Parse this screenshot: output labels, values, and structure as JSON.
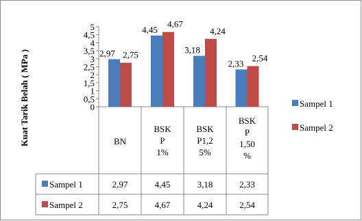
{
  "chart_data": {
    "type": "bar",
    "title": "",
    "xlabel": "",
    "ylabel": "Kuat Tarik Belah ( MPa )",
    "ylim": [
      0,
      5
    ],
    "yticks": [
      "0",
      "0,5",
      "1",
      "1,5",
      "2",
      "2,5",
      "3",
      "3,5",
      "4",
      "4,5",
      "5"
    ],
    "categories": [
      [
        "BN"
      ],
      [
        "BSK",
        "P",
        "1%"
      ],
      [
        "BSK",
        "P1,2",
        "5%"
      ],
      [
        "BSK",
        "P",
        "1,50",
        "%"
      ]
    ],
    "series": [
      {
        "name": "Sampel 1",
        "color": "#4a7ebb",
        "values": [
          2.97,
          4.45,
          3.18,
          2.33
        ],
        "labels": [
          "2,97",
          "4,45",
          "3,18",
          "2,33"
        ]
      },
      {
        "name": "Sampel 2",
        "color": "#be4b48",
        "values": [
          2.75,
          4.67,
          4.24,
          2.54
        ],
        "labels": [
          "2,75",
          "4,67",
          "4,24",
          "2,54"
        ]
      }
    ],
    "legend_position": "right",
    "grid": false,
    "data_table": true
  }
}
